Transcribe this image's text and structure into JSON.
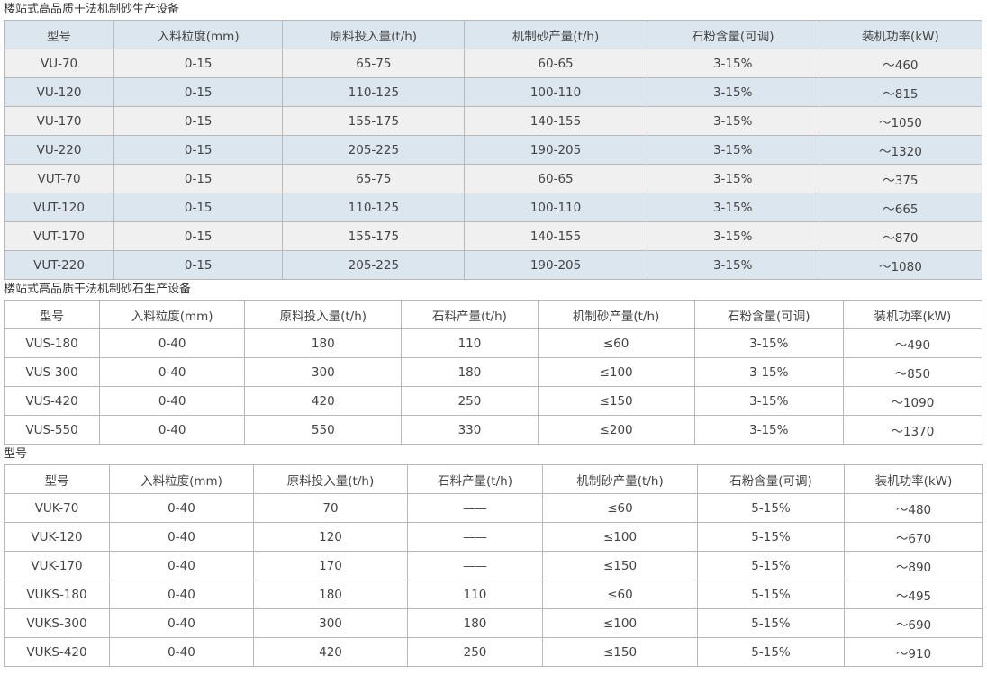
{
  "section1": {
    "title": "楼站式高品质干法机制砂生产设备",
    "headers": [
      "型号",
      "入料粒度(mm)",
      "原料投入量(t/h)",
      "机制砂产量(t/h)",
      "石粉含量(可调)",
      "装机功率(kW)"
    ],
    "rows": [
      [
        "VU-70",
        "0-15",
        "65-75",
        "60-65",
        "3-15%",
        "～460"
      ],
      [
        "VU-120",
        "0-15",
        "110-125",
        "100-110",
        "3-15%",
        "～815"
      ],
      [
        "VU-170",
        "0-15",
        "155-175",
        "140-155",
        "3-15%",
        "～1050"
      ],
      [
        "VU-220",
        "0-15",
        "205-225",
        "190-205",
        "3-15%",
        "～1320"
      ],
      [
        "VUT-70",
        "0-15",
        "65-75",
        "60-65",
        "3-15%",
        "～375"
      ],
      [
        "VUT-120",
        "0-15",
        "110-125",
        "100-110",
        "3-15%",
        "～665"
      ],
      [
        "VUT-170",
        "0-15",
        "155-175",
        "140-155",
        "3-15%",
        "～870"
      ],
      [
        "VUT-220",
        "0-15",
        "205-225",
        "190-205",
        "3-15%",
        "～1080"
      ]
    ]
  },
  "section2": {
    "title": "楼站式高品质干法机制砂石生产设备",
    "headers": [
      "型号",
      "入料粒度(mm)",
      "原料投入量(t/h)",
      "石料产量(t/h)",
      "机制砂产量(t/h)",
      "石粉含量(可调)",
      "装机功率(kW)"
    ],
    "rows": [
      [
        "VUS-180",
        "0-40",
        "180",
        "110",
        "≤60",
        "3-15%",
        "～490"
      ],
      [
        "VUS-300",
        "0-40",
        "300",
        "180",
        "≤100",
        "3-15%",
        "～850"
      ],
      [
        "VUS-420",
        "0-40",
        "420",
        "250",
        "≤150",
        "3-15%",
        "～1090"
      ],
      [
        "VUS-550",
        "0-40",
        "550",
        "330",
        "≤200",
        "3-15%",
        "～1370"
      ]
    ]
  },
  "section3": {
    "title": "型号",
    "headers": [
      "型号",
      "入料粒度(mm)",
      "原料投入量(t/h)",
      "石料产量(t/h)",
      "机制砂产量(t/h)",
      "石粉含量(可调)",
      "装机功率(kW)"
    ],
    "rows": [
      [
        "VUK-70",
        "0-40",
        "70",
        "——",
        "≤60",
        "5-15%",
        "～480"
      ],
      [
        "VUK-120",
        "0-40",
        "120",
        "——",
        "≤100",
        "5-15%",
        "～670"
      ],
      [
        "VUK-170",
        "0-40",
        "170",
        "——",
        "≤150",
        "5-15%",
        "～890"
      ],
      [
        "VUKS-180",
        "0-40",
        "180",
        "110",
        "≤60",
        "5-15%",
        "～495"
      ],
      [
        "VUKS-300",
        "0-40",
        "300",
        "180",
        "≤100",
        "5-15%",
        "～690"
      ],
      [
        "VUKS-420",
        "0-40",
        "420",
        "250",
        "≤150",
        "5-15%",
        "～910"
      ]
    ]
  }
}
